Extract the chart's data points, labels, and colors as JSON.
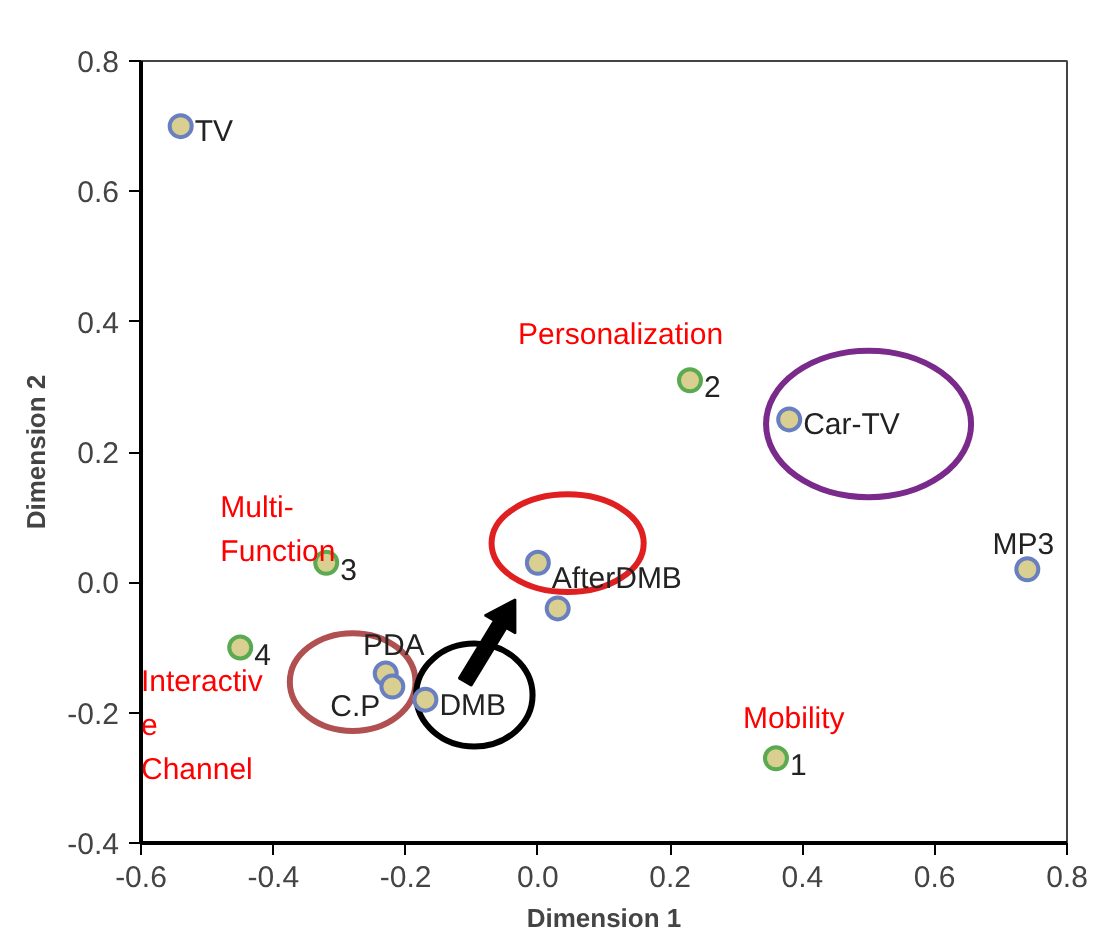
{
  "chart_data": {
    "type": "scatter",
    "xlabel": "Dimension 1",
    "ylabel": "Dimension 2",
    "xlim": [
      -0.6,
      0.8
    ],
    "ylim": [
      -0.4,
      0.8
    ],
    "xticks": [
      {
        "value": -0.6,
        "label": "-0.6"
      },
      {
        "value": -0.4,
        "label": "-0.4"
      },
      {
        "value": -0.2,
        "label": "-0.2"
      },
      {
        "value": 0,
        "label": "0.0"
      },
      {
        "value": 0.2,
        "label": "0.2"
      },
      {
        "value": 0.4,
        "label": "0.4"
      },
      {
        "value": 0.6,
        "label": "0.6"
      },
      {
        "value": 0.8,
        "label": "0.8"
      }
    ],
    "yticks": [
      {
        "value": -0.4,
        "label": "-0.4"
      },
      {
        "value": -0.2,
        "label": "-0.2"
      },
      {
        "value": 0,
        "label": "0.0"
      },
      {
        "value": 0.2,
        "label": "0.2"
      },
      {
        "value": 0.4,
        "label": "0.4"
      },
      {
        "value": 0.6,
        "label": "0.6"
      },
      {
        "value": 0.8,
        "label": "0.8"
      }
    ],
    "grid": false,
    "marker": "circle",
    "series": [
      {
        "name": "TV",
        "color": "#6a7fc0",
        "x": [
          -0.54
        ],
        "values": [
          0.7
        ]
      },
      {
        "name": "Car-TV",
        "color": "#6a7fc0",
        "x": [
          0.38
        ],
        "values": [
          0.25
        ]
      },
      {
        "name": "MP3",
        "color": "#6a7fc0",
        "x": [
          0.74
        ],
        "values": [
          0.02
        ]
      },
      {
        "name": "AfterDMB",
        "color": "#6a7fc0",
        "x": [
          0.0
        ],
        "values": [
          0.03
        ]
      },
      {
        "color": "#6a7fc0",
        "x": [
          0.03
        ],
        "values": [
          -0.04
        ]
      },
      {
        "name": "PDA",
        "color": "#6a7fc0",
        "x": [
          -0.23
        ],
        "values": [
          -0.14
        ]
      },
      {
        "name": "C.P",
        "color": "#6a7fc0",
        "x": [
          -0.22
        ],
        "values": [
          -0.16
        ]
      },
      {
        "name": "DMB",
        "color": "#6a7fc0",
        "x": [
          -0.17
        ],
        "values": [
          -0.18
        ]
      },
      {
        "name": "1",
        "color": "#5aaa50",
        "x": [
          0.36
        ],
        "values": [
          -0.27
        ]
      },
      {
        "name": "2",
        "color": "#5aaa50",
        "x": [
          0.23
        ],
        "values": [
          0.31
        ]
      },
      {
        "name": "3",
        "color": "#5aaa50",
        "x": [
          -0.32
        ],
        "values": [
          0.03
        ]
      },
      {
        "name": "4",
        "color": "#5aaa50",
        "x": [
          -0.45
        ],
        "values": [
          -0.1
        ]
      }
    ],
    "annotations": [
      "Personalization",
      "Multi-\nFunction",
      "Interactiv\ne\nChannel",
      "Mobility"
    ]
  }
}
